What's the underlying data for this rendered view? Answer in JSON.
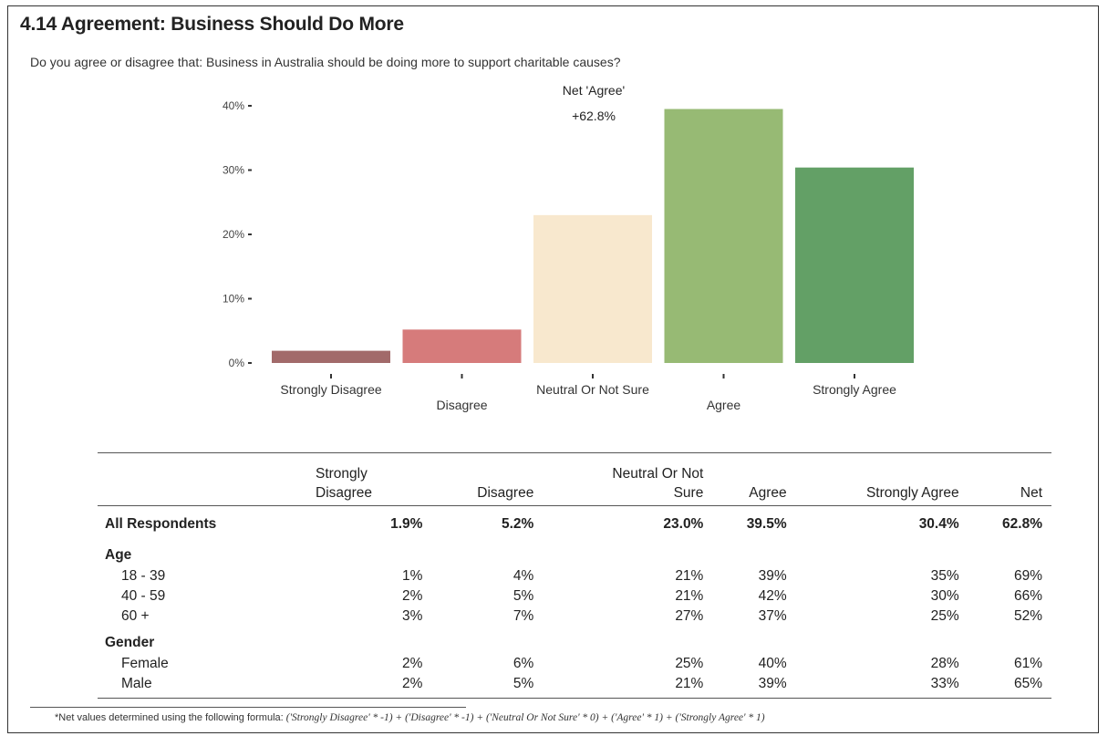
{
  "page": {
    "title": "4.14 Agreement:  Business Should Do More",
    "subtitle": "Do you agree or disagree that: Business in Australia should be doing more to support charitable causes?"
  },
  "chart_data": {
    "type": "bar",
    "categories": [
      "Strongly Disagree",
      "Disagree",
      "Neutral Or Not Sure",
      "Agree",
      "Strongly Agree"
    ],
    "values": [
      1.9,
      5.2,
      23.0,
      39.5,
      30.4
    ],
    "colors": [
      "#A26A6A",
      "#D67B7B",
      "#F8E8CE",
      "#97BA74",
      "#63A066"
    ],
    "ylim": [
      0,
      40
    ],
    "yticks": [
      "0%",
      "10%",
      "20%",
      "30%",
      "40%"
    ],
    "title": "",
    "xlabel": "",
    "ylabel": "",
    "annotation": {
      "line1": "Net 'Agree'",
      "line2": "+62.8%"
    },
    "grid": false
  },
  "table": {
    "headers": {
      "strongly_disagree": [
        "Strongly",
        "Disagree"
      ],
      "disagree": "Disagree",
      "neutral": [
        "Neutral Or Not",
        "Sure"
      ],
      "agree": "Agree",
      "strongly_agree": "Strongly Agree",
      "net": "Net"
    },
    "total": {
      "label": "All Respondents",
      "values": [
        "1.9%",
        "5.2%",
        "23.0%",
        "39.5%",
        "30.4%",
        "62.8%"
      ]
    },
    "groups": [
      {
        "label": "Age",
        "rows": [
          {
            "label": "18 - 39",
            "values": [
              "1%",
              "4%",
              "21%",
              "39%",
              "35%",
              "69%"
            ]
          },
          {
            "label": "40 - 59",
            "values": [
              "2%",
              "5%",
              "21%",
              "42%",
              "30%",
              "66%"
            ]
          },
          {
            "label": "60 +",
            "values": [
              "3%",
              "7%",
              "27%",
              "37%",
              "25%",
              "52%"
            ]
          }
        ]
      },
      {
        "label": "Gender",
        "rows": [
          {
            "label": "Female",
            "values": [
              "2%",
              "6%",
              "25%",
              "40%",
              "28%",
              "61%"
            ]
          },
          {
            "label": "Male",
            "values": [
              "2%",
              "5%",
              "21%",
              "39%",
              "33%",
              "65%"
            ]
          }
        ]
      }
    ]
  },
  "footnote": {
    "prefix": "*Net values determined using the following formula: ",
    "formula": "('Strongly Disagree' * -1) + ('Disagree' * -1) + ('Neutral Or Not Sure' * 0) + ('Agree' * 1) + ('Strongly Agree' * 1)"
  }
}
